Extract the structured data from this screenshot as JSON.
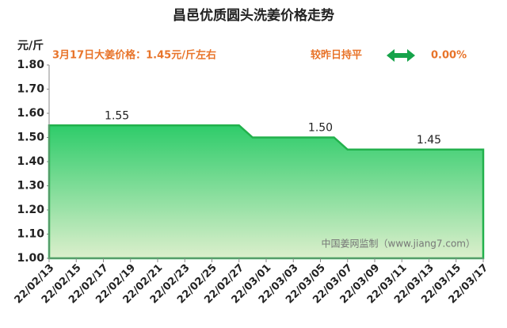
{
  "chart_data": {
    "type": "area",
    "title": "昌邑优质圆头洗姜价格走势",
    "y_axis_label": "元/斤",
    "annotations": [
      "3月17日大姜价格：1.45元/斤左右",
      "较昨日持平",
      "0.00%",
      "中国姜网监制（www.jiang7.com）"
    ],
    "color": "#22b14c",
    "categories": [
      "22/02/13",
      null,
      "22/02/15",
      null,
      "22/02/17",
      null,
      "22/02/19",
      null,
      "22/02/21",
      null,
      "22/02/23",
      null,
      "22/02/25",
      null,
      "22/02/27",
      null,
      "22/03/01",
      null,
      "22/03/03",
      null,
      "22/03/05",
      null,
      "22/03/07",
      null,
      "22/03/09",
      null,
      "22/03/11",
      null,
      "22/03/13",
      null,
      "22/03/15",
      null,
      "22/03/17"
    ],
    "values": [
      1.55,
      1.55,
      1.55,
      1.55,
      1.55,
      1.55,
      1.55,
      1.55,
      1.55,
      1.55,
      1.55,
      1.55,
      1.55,
      1.55,
      1.55,
      1.5,
      1.5,
      1.5,
      1.5,
      1.5,
      1.5,
      1.5,
      1.45,
      1.45,
      1.45,
      1.45,
      1.45,
      1.45,
      1.45,
      1.45,
      1.45,
      1.45,
      1.45
    ],
    "value_labels": [
      null,
      null,
      null,
      null,
      null,
      "1.55",
      null,
      null,
      null,
      null,
      null,
      null,
      null,
      null,
      null,
      null,
      null,
      null,
      null,
      null,
      "1.50",
      null,
      null,
      null,
      null,
      null,
      null,
      null,
      "1.45",
      null,
      null,
      null,
      null
    ],
    "ylim": [
      1.0,
      1.8
    ],
    "yticks": [
      {
        "value": 1.0,
        "label": "1.00"
      },
      {
        "value": 1.1,
        "label": "1.10"
      },
      {
        "value": 1.2,
        "label": "1.20"
      },
      {
        "value": 1.3,
        "label": "1.30"
      },
      {
        "value": 1.4,
        "label": "1.40"
      },
      {
        "value": 1.5,
        "label": "1.50"
      },
      {
        "value": 1.6,
        "label": "1.60"
      },
      {
        "value": 1.7,
        "label": "1.70"
      },
      {
        "value": 1.8,
        "label": "1.80"
      }
    ]
  }
}
